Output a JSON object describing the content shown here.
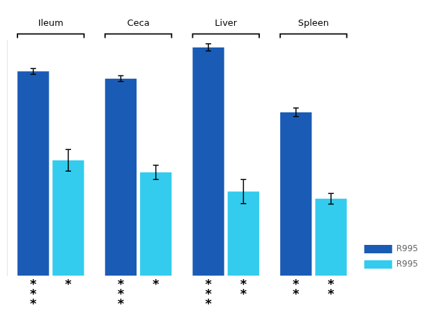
{
  "chart_data": {
    "type": "bar",
    "categories": [
      "Ileum",
      "Ceca",
      "Liver",
      "Spleen"
    ],
    "series": [
      {
        "name": "R995",
        "color": "#1A5CB5",
        "values": [
          8.5,
          8.2,
          9.5,
          6.8
        ],
        "errors": [
          0.12,
          0.12,
          0.15,
          0.18
        ],
        "significance": [
          "***",
          "***",
          "***",
          "**"
        ]
      },
      {
        "name": "R995",
        "color": "#33CCEE",
        "values": [
          4.8,
          4.3,
          3.5,
          3.2
        ],
        "errors": [
          0.45,
          0.3,
          0.5,
          0.22
        ],
        "significance": [
          "*",
          "*",
          "**",
          "**"
        ]
      }
    ],
    "ylim": [
      0,
      9.8
    ],
    "yticks": [],
    "grid": false,
    "legend": "lower right",
    "tick_labels": "x"
  }
}
